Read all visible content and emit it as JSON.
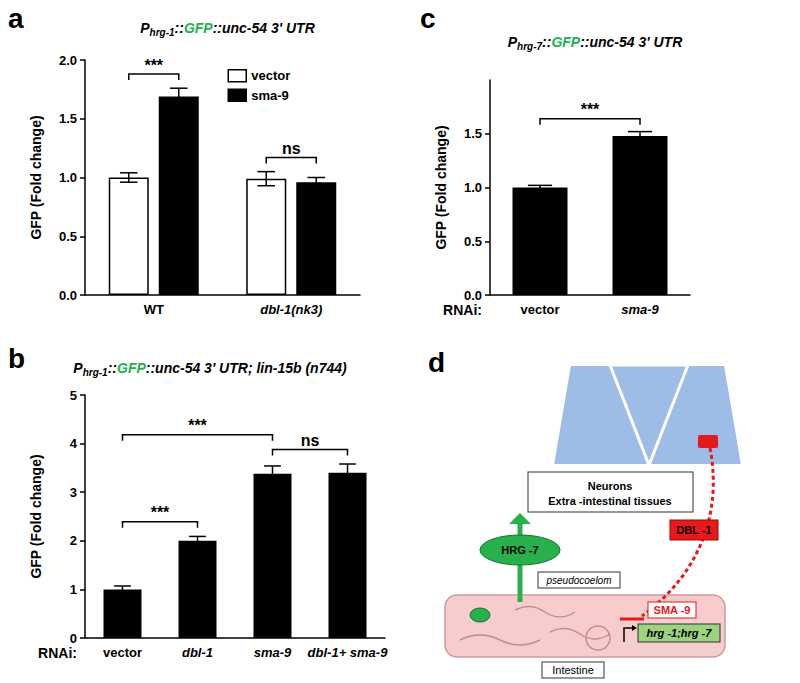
{
  "chart_data": [
    {
      "type": "bar",
      "panel_label": "a",
      "title": "Phrg-1::GFP::unc-54 3' UTR",
      "y_label": "GFP (Fold change)",
      "categories": [
        "WT",
        "dbl-1(nk3)"
      ],
      "series": [
        {
          "name": "vector",
          "color": "#ffffff",
          "values": [
            1.0,
            0.99
          ],
          "errors": [
            0.04,
            0.06
          ]
        },
        {
          "name": "sma-9",
          "color": "#000000",
          "values": [
            1.69,
            0.96
          ],
          "errors": [
            0.07,
            0.04
          ]
        }
      ],
      "ylim": [
        0,
        2
      ],
      "yticks": [
        {
          "value": 0,
          "label": "0.0"
        },
        {
          "value": 0.5,
          "label": "0.5"
        },
        {
          "value": 1,
          "label": "1.0"
        },
        {
          "value": 1.5,
          "label": "1.5"
        },
        {
          "value": 2,
          "label": "2.0"
        }
      ],
      "grid": false,
      "legend": "upper center",
      "annotations": [
        {
          "text": "***",
          "category": "WT"
        },
        {
          "text": "ns",
          "category": "dbl-1(nk3)"
        }
      ]
    },
    {
      "type": "bar",
      "panel_label": "b",
      "title": "Phrg-1::GFP::unc-54 3' UTR; lin-15b (n744)",
      "y_label": "GFP (Fold change)",
      "x_label": "RNAi:",
      "categories": [
        "vector",
        "dbl-1",
        "sma-9",
        "dbl-1+ sma-9"
      ],
      "values": [
        1.0,
        2.0,
        3.38,
        3.4
      ],
      "errors": [
        0.07,
        0.09,
        0.16,
        0.18
      ],
      "color": "#000000",
      "ylim": [
        0,
        5
      ],
      "yticks": [
        0,
        1,
        2,
        3,
        4,
        5
      ],
      "grid": false,
      "annotations": [
        {
          "text": "***",
          "from": "vector",
          "to": "dbl-1"
        },
        {
          "text": "***",
          "from": "vector",
          "to": "sma-9"
        },
        {
          "text": "ns",
          "from": "sma-9",
          "to": "dbl-1+ sma-9"
        }
      ]
    },
    {
      "type": "bar",
      "panel_label": "c",
      "title": "Phrg-7::GFP::unc-54 3' UTR",
      "y_label": "GFP (Fold change)",
      "x_label": "RNAi:",
      "categories": [
        "vector",
        "sma-9"
      ],
      "values": [
        1.0,
        1.48
      ],
      "errors": [
        0.02,
        0.04
      ],
      "color": "#000000",
      "ylim": [
        0,
        2
      ],
      "yticks": [
        {
          "value": 0,
          "label": "0.0"
        },
        {
          "value": 0.5,
          "label": "0.5"
        },
        {
          "value": 1,
          "label": "1.0"
        },
        {
          "value": 1.5,
          "label": "1.5"
        }
      ],
      "grid": false,
      "annotations": [
        {
          "text": "***",
          "from": "vector",
          "to": "sma-9"
        }
      ]
    }
  ],
  "diagram": {
    "panel_label": "d",
    "neurons": "Neurons",
    "tissues": "Extra -intestinal tissues",
    "secreted": "HRG -7",
    "space": "pseudocoelom",
    "signal": "DBL -1",
    "repressor": "SMA -9",
    "genes": "hrg -1;hrg -7",
    "tissue": "Intestine"
  }
}
